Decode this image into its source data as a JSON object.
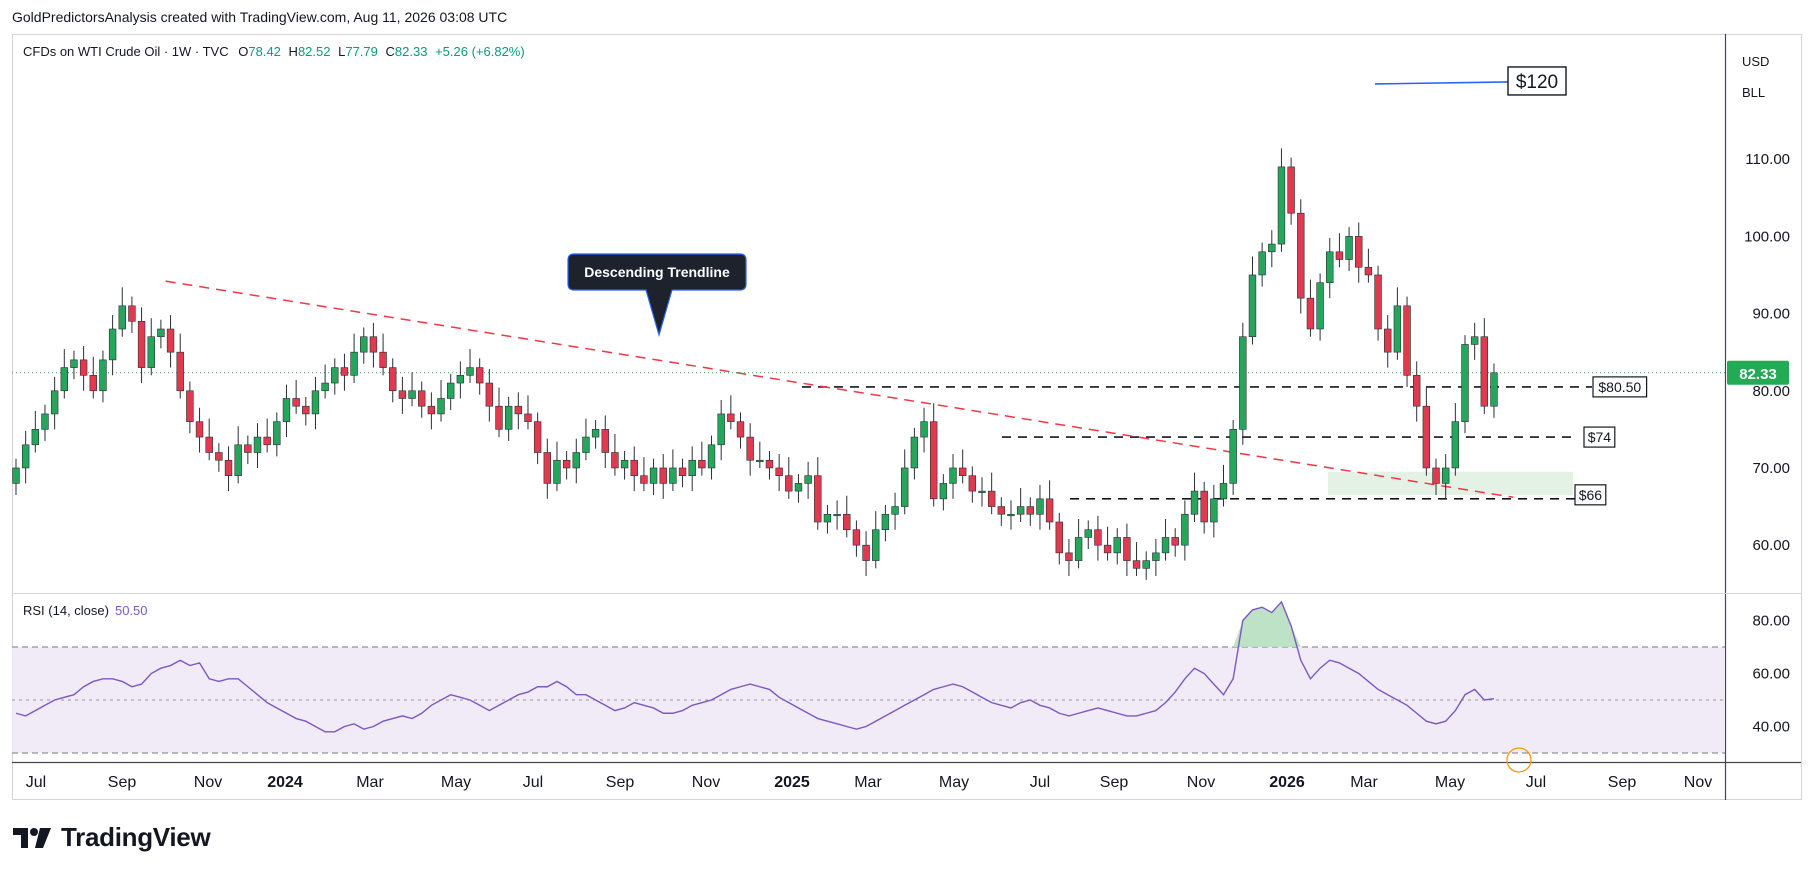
{
  "header": {
    "text": "GoldPredictorsAnalysis created with TradingView.com, Aug 11, 2026 03:08 UTC"
  },
  "legend": {
    "symbol": "CFDs on WTI Crude Oil · 1W · TVC",
    "o_label": "O",
    "o": "78.42",
    "h_label": "H",
    "h": "82.52",
    "l_label": "L",
    "l": "77.79",
    "c_label": "C",
    "c": "82.33",
    "change": "+5.26 (+6.82%)"
  },
  "currency": {
    "unit1": "USD",
    "unit2": "BLL"
  },
  "rsi_legend": {
    "label": "RSI (14, close)",
    "value": "50.50"
  },
  "logo": {
    "text": "TradingView"
  },
  "colors": {
    "up": "#26a65b",
    "down": "#e03a4e",
    "rsi": "#7e57c2",
    "price_badge": "#22ab54",
    "trend": "#f23645"
  },
  "chart_data": [
    {
      "type": "candlestick",
      "ylim": [
        53,
        122
      ],
      "y_ticks": [
        "60.00",
        "70.00",
        "80.00",
        "90.00",
        "100.00",
        "110.00"
      ],
      "x_ticks": [
        "Jul",
        "Sep",
        "Nov",
        "2024",
        "Mar",
        "May",
        "Jul",
        "Sep",
        "Nov",
        "2025",
        "Mar",
        "May",
        "Jul",
        "Sep",
        "Nov",
        "2026",
        "Mar",
        "May",
        "Jul",
        "Sep",
        "Nov"
      ],
      "last_price": 82.33,
      "last_price_label": "82.33",
      "closes": [
        70,
        73,
        75,
        77,
        80,
        83,
        84,
        82,
        80,
        84,
        88,
        91,
        89,
        83,
        87,
        88,
        85,
        80,
        76,
        74,
        72,
        71,
        69,
        73,
        72,
        74,
        73,
        76,
        79,
        78,
        77,
        80,
        81,
        83,
        82,
        85,
        87,
        85,
        83,
        80,
        79,
        80,
        78,
        77,
        79,
        81,
        82,
        83,
        81,
        78,
        75,
        78,
        77,
        76,
        72,
        68,
        71,
        70,
        72,
        74,
        75,
        72,
        70,
        71,
        69,
        68,
        70,
        68,
        70,
        69,
        71,
        70,
        73,
        77,
        76,
        74,
        71,
        71,
        70,
        69,
        67,
        68,
        69,
        63,
        64,
        64,
        62,
        60,
        58,
        62,
        64,
        65,
        70,
        74,
        76,
        66,
        68,
        70,
        69,
        67,
        67,
        65,
        64,
        64,
        65,
        64,
        66,
        63,
        59,
        58,
        61,
        62,
        60,
        59,
        61,
        58,
        57,
        58,
        59,
        61,
        60,
        64,
        67,
        63,
        66,
        68,
        75,
        87,
        95,
        98,
        99,
        109,
        103,
        92,
        88,
        94,
        98,
        97,
        100,
        96,
        95,
        88,
        85,
        91,
        82,
        78,
        70,
        68,
        70,
        76,
        86,
        87,
        78,
        82.33
      ],
      "annotations": {
        "trendline_label": "Descending Trendline",
        "labels": [
          "$120",
          "$80.50",
          "$74",
          "$66"
        ],
        "levels": [
          120,
          80.5,
          74,
          66
        ],
        "trendline": [
          [
            1,
            94.2
          ],
          [
            155,
            66.2
          ]
        ],
        "support_zone": [
          69.5,
          66.5
        ]
      }
    },
    {
      "type": "line",
      "name": "RSI (14, close)",
      "ylim": [
        25,
        90
      ],
      "y_ticks": [
        "40.00",
        "60.00",
        "80.00"
      ],
      "bands": [
        30,
        50,
        70
      ],
      "values": [
        45,
        44,
        46,
        48,
        50,
        51,
        52,
        55,
        57,
        58,
        58,
        57,
        55,
        56,
        60,
        62,
        63,
        65,
        63,
        64,
        58,
        57,
        58,
        58,
        55,
        52,
        49,
        47,
        45,
        43,
        42,
        40,
        38,
        38,
        40,
        41,
        39,
        40,
        42,
        43,
        44,
        43,
        45,
        48,
        50,
        52,
        51,
        50,
        48,
        46,
        48,
        50,
        52,
        53,
        55,
        55,
        57,
        55,
        52,
        52,
        50,
        48,
        46,
        47,
        49,
        48,
        47,
        45,
        45,
        46,
        48,
        49,
        50,
        52,
        54,
        55,
        56,
        55,
        54,
        51,
        49,
        47,
        45,
        43,
        42,
        41,
        40,
        39,
        40,
        42,
        44,
        46,
        48,
        50,
        52,
        54,
        55,
        56,
        55,
        53,
        51,
        49,
        48,
        47,
        49,
        50,
        48,
        47,
        45,
        44,
        45,
        46,
        47,
        46,
        45,
        44,
        44,
        45,
        46,
        49,
        53,
        58,
        62,
        60,
        56,
        52,
        58,
        80,
        84,
        85,
        83,
        87,
        78,
        65,
        58,
        62,
        65,
        64,
        62,
        60,
        57,
        54,
        52,
        50,
        48,
        45,
        42,
        41,
        42,
        46,
        52,
        54,
        50,
        50.5
      ]
    }
  ]
}
